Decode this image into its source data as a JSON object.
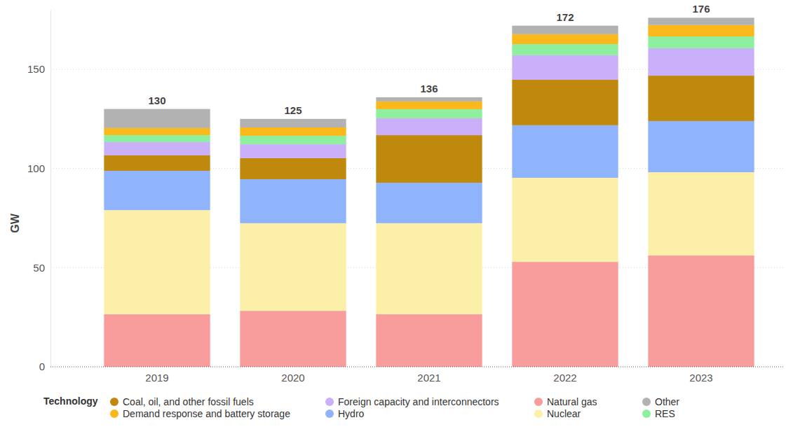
{
  "chart_data": {
    "type": "bar",
    "stacked": true,
    "y_label": "GW",
    "legend_title": "Technology",
    "legend": "bottom",
    "grid": true,
    "data_labels": false,
    "categories": [
      "2019",
      "2020",
      "2021",
      "2022",
      "2023"
    ],
    "ylim": [
      0,
      180
    ],
    "yticks": [
      0,
      50,
      100,
      150
    ],
    "totals": [
      130,
      125,
      136,
      172,
      176
    ],
    "series": [
      {
        "name": "Natural gas",
        "color": "#f99c9c",
        "values": [
          26.5,
          28.2,
          26.5,
          52.9,
          56.1
        ]
      },
      {
        "name": "Nuclear",
        "color": "#fcf0a8",
        "values": [
          52.5,
          44.2,
          45.9,
          42.4,
          42.0
        ]
      },
      {
        "name": "Hydro",
        "color": "#90b4fb",
        "values": [
          19.8,
          22.2,
          20.4,
          26.5,
          25.8
        ]
      },
      {
        "name": "Coal, oil, and other fossil fuels",
        "color": "#bf890e",
        "values": [
          7.8,
          10.6,
          24.0,
          22.9,
          22.9
        ]
      },
      {
        "name": "Foreign capacity and interconnectors",
        "color": "#c9b0f9",
        "values": [
          6.7,
          7.0,
          8.5,
          12.4,
          13.8
        ]
      },
      {
        "name": "RES",
        "color": "#8ef09f",
        "values": [
          3.5,
          4.3,
          4.6,
          5.6,
          6.0
        ]
      },
      {
        "name": "Demand response and battery storage",
        "color": "#fbb81b",
        "values": [
          3.6,
          4.2,
          3.9,
          5.0,
          5.7
        ]
      },
      {
        "name": "Other",
        "color": "#b2b2b2",
        "values": [
          9.6,
          4.3,
          2.1,
          4.3,
          3.7
        ]
      }
    ]
  }
}
